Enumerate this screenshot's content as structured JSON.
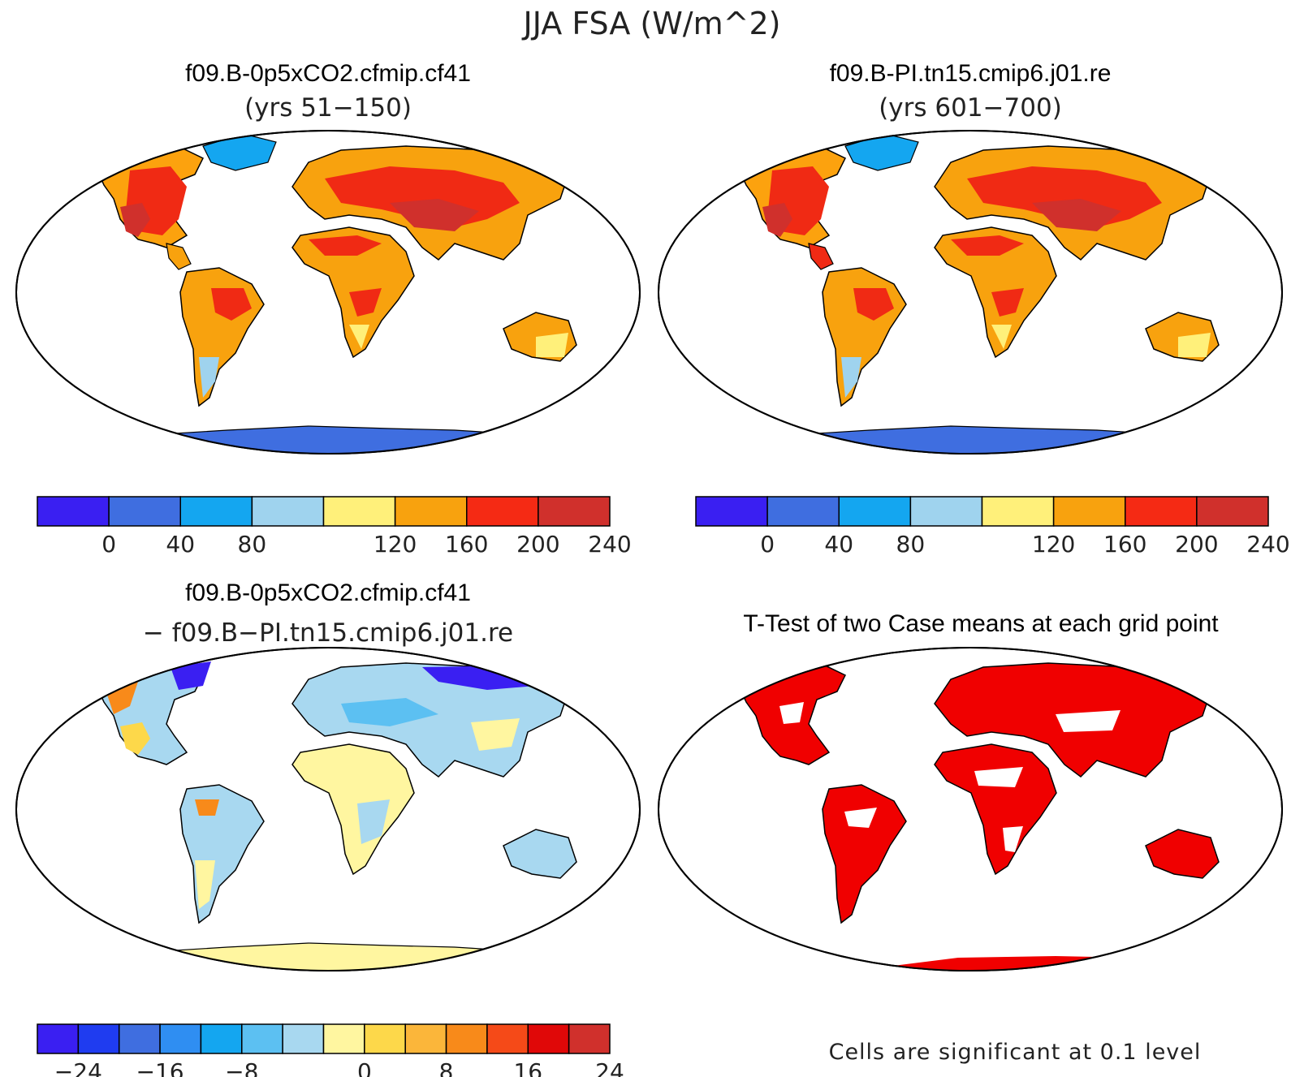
{
  "figure": {
    "title": "JJA FSA (W/m^2)",
    "panels": [
      {
        "id": "case1",
        "title_line1": "f09.B-0p5xCO2.cfmip.cf41",
        "title_line2": "(yrs 51−150)"
      },
      {
        "id": "case2",
        "title_line1": "f09.B-PI.tn15.cmip6.j01.re",
        "title_line2": "(yrs 601−700)"
      },
      {
        "id": "diff",
        "title_line1": "f09.B-0p5xCO2.cfmip.cf41",
        "title_line2": "− f09.B−PI.tn15.cmip6.j01.re"
      },
      {
        "id": "ttest",
        "title_line1": "T-Test of two Case means at each grid point",
        "title_line2": ""
      }
    ],
    "footnote": "Cells are significant at 0.1 level"
  },
  "colorbars": {
    "absolute": {
      "colors": [
        "#3a1ff2",
        "#3f6ee0",
        "#14a6f0",
        "#9fd3ee",
        "#fff07a",
        "#f8a20e",
        "#f52a14",
        "#d0302c"
      ],
      "tick_labels": [
        "0",
        "40",
        "80",
        "120",
        "160",
        "200",
        "240"
      ]
    },
    "difference": {
      "colors": [
        "#3a1ff2",
        "#1f3cf0",
        "#3f6ee0",
        "#2f8ef2",
        "#14a6f0",
        "#5cc0f2",
        "#a8d8f0",
        "#fff6a0",
        "#fdd84a",
        "#fbb63a",
        "#f88a1a",
        "#f54a18",
        "#e00808",
        "#d0302c"
      ],
      "tick_labels": [
        "−24",
        "−16",
        "−8",
        "0",
        "8",
        "16",
        "24"
      ]
    }
  },
  "palette": {
    "ocean": "#ffffff",
    "coast": "#000000",
    "significant": "#f00000"
  }
}
